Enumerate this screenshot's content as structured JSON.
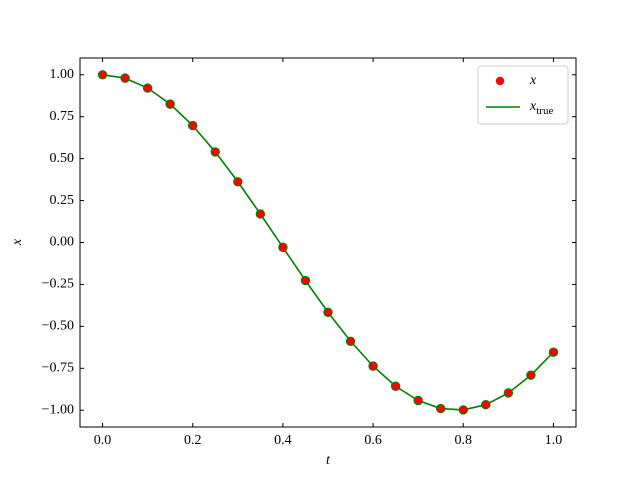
{
  "chart_data": {
    "type": "line",
    "xlabel": "t",
    "ylabel": "x",
    "xlim": [
      -0.05,
      1.05
    ],
    "ylim": [
      -1.1,
      1.1
    ],
    "xticks": [
      {
        "value": 0,
        "label": "0.0"
      },
      {
        "value": 0.2,
        "label": "0.2"
      },
      {
        "value": 0.4,
        "label": "0.4"
      },
      {
        "value": 0.6,
        "label": "0.6"
      },
      {
        "value": 0.8,
        "label": "0.8"
      },
      {
        "value": 1,
        "label": "1.0"
      }
    ],
    "yticks": [
      {
        "value": -1,
        "label": "−1.00"
      },
      {
        "value": -0.75,
        "label": "−0.75"
      },
      {
        "value": -0.5,
        "label": "−0.50"
      },
      {
        "value": -0.25,
        "label": "−0.25"
      },
      {
        "value": 0,
        "label": "0.00"
      },
      {
        "value": 0.25,
        "label": "0.25"
      },
      {
        "value": 0.5,
        "label": "0.50"
      },
      {
        "value": 0.75,
        "label": "0.75"
      },
      {
        "value": 1,
        "label": "1.00"
      }
    ],
    "x": [
      0,
      0.05,
      0.1,
      0.15,
      0.2,
      0.25,
      0.3,
      0.35,
      0.4,
      0.45,
      0.5,
      0.55,
      0.6,
      0.65,
      0.7,
      0.75,
      0.8,
      0.85,
      0.9,
      0.95,
      1.0
    ],
    "legend": "upper right",
    "series": [
      {
        "name": "x_true",
        "type": "line",
        "color": "#008000",
        "values": [
          1,
          0.98,
          0.921,
          0.825,
          0.697,
          0.54,
          0.362,
          0.17,
          -0.029,
          -0.227,
          -0.416,
          -0.589,
          -0.737,
          -0.857,
          -0.942,
          -0.99,
          -0.998,
          -0.967,
          -0.897,
          -0.791,
          -0.654
        ]
      },
      {
        "name": "x",
        "type": "scatter",
        "color": "#ff0000",
        "edgecolor": "#008000",
        "values": [
          1,
          0.98,
          0.921,
          0.825,
          0.697,
          0.54,
          0.362,
          0.17,
          -0.029,
          -0.227,
          -0.416,
          -0.589,
          -0.737,
          -0.857,
          -0.942,
          -0.99,
          -0.998,
          -0.967,
          -0.897,
          -0.791,
          -0.654
        ]
      }
    ]
  }
}
